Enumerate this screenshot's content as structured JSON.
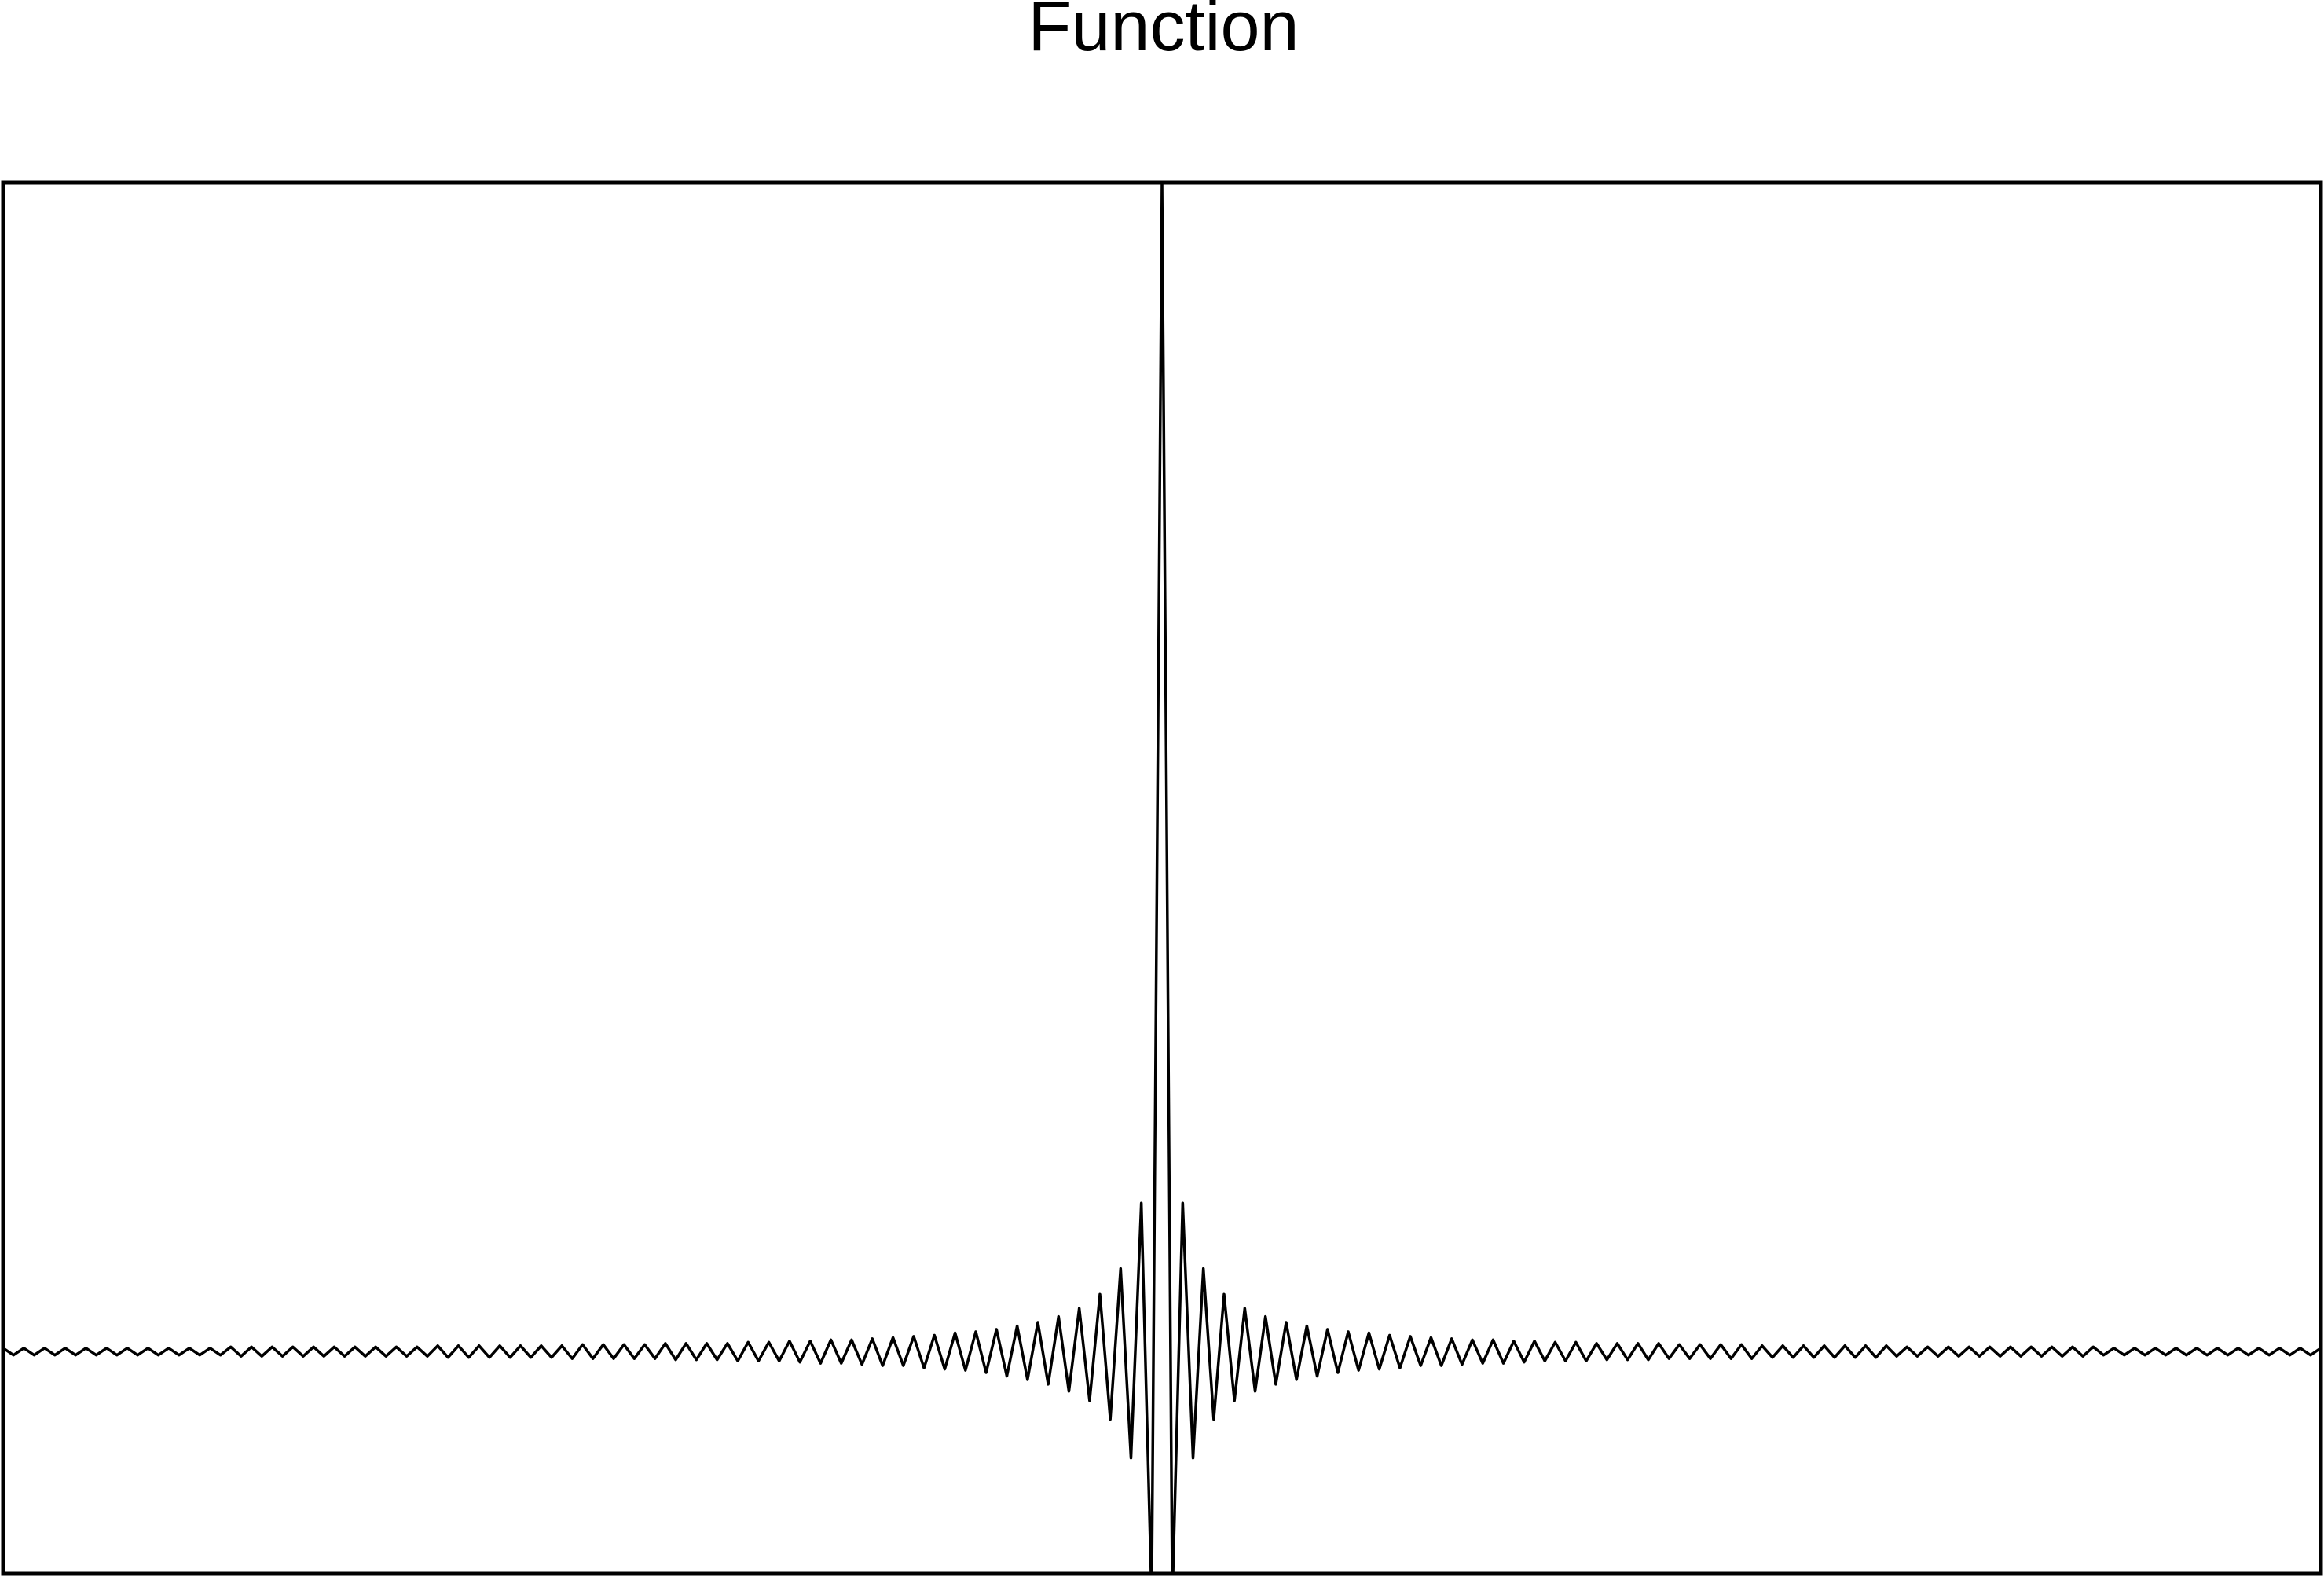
{
  "chart_data": {
    "type": "line",
    "title": "Function",
    "color": "#000000",
    "xlim": [
      -112,
      112
    ],
    "ylim": [
      -0.19,
      1
    ],
    "grid": false,
    "x": [
      -112,
      -111,
      -110,
      -109,
      -108,
      -107,
      -106,
      -105,
      -104,
      -103,
      -102,
      -101,
      -100,
      -99,
      -98,
      -97,
      -96,
      -95,
      -94,
      -93,
      -92,
      -91,
      -90,
      -89,
      -88,
      -87,
      -86,
      -85,
      -84,
      -83,
      -82,
      -81,
      -80,
      -79,
      -78,
      -77,
      -76,
      -75,
      -74,
      -73,
      -72,
      -71,
      -70,
      -69,
      -68,
      -67,
      -66,
      -65,
      -64,
      -63,
      -62,
      -61,
      -60,
      -59,
      -58,
      -57,
      -56,
      -55,
      -54,
      -53,
      -52,
      -51,
      -50,
      -49,
      -48,
      -47,
      -46,
      -45,
      -44,
      -43,
      -42,
      -41,
      -40,
      -39,
      -38,
      -37,
      -36,
      -35,
      -34,
      -33,
      -32,
      -31,
      -30,
      -29,
      -28,
      -27,
      -26,
      -25,
      -24,
      -23,
      -22,
      -21,
      -20,
      -19,
      -18,
      -17,
      -16,
      -15,
      -14,
      -13,
      -12,
      -11,
      -10,
      -9,
      -8,
      -7,
      -6,
      -5,
      -4,
      -3,
      -2,
      -1,
      0,
      1,
      2,
      3,
      4,
      5,
      6,
      7,
      8,
      9,
      10,
      11,
      12,
      13,
      14,
      15,
      16,
      17,
      18,
      19,
      20,
      21,
      22,
      23,
      24,
      25,
      26,
      27,
      28,
      29,
      30,
      31,
      32,
      33,
      34,
      35,
      36,
      37,
      38,
      39,
      40,
      41,
      42,
      43,
      44,
      45,
      46,
      47,
      48,
      49,
      50,
      51,
      52,
      53,
      54,
      55,
      56,
      57,
      58,
      59,
      60,
      61,
      62,
      63,
      64,
      65,
      66,
      67,
      68,
      69,
      70,
      71,
      72,
      73,
      74,
      75,
      76,
      77,
      78,
      79,
      80,
      81,
      82,
      83,
      84,
      85,
      86,
      87,
      88,
      89,
      90,
      91,
      92,
      93,
      94,
      95,
      96,
      97,
      98,
      99,
      100,
      101,
      102,
      103,
      104,
      105,
      106,
      107,
      108,
      109,
      110,
      111,
      112
    ],
    "values": [
      0.003,
      -0.003,
      0.003,
      -0.003,
      0.003,
      -0.003,
      0.003,
      -0.003,
      0.003,
      -0.003,
      0.003,
      -0.003,
      0.003,
      -0.003,
      0.003,
      -0.003,
      0.003,
      -0.003,
      0.003,
      -0.003,
      0.003,
      -0.003,
      0.004,
      -0.004,
      0.004,
      -0.004,
      0.004,
      -0.004,
      0.004,
      -0.004,
      0.004,
      -0.004,
      0.004,
      -0.004,
      0.004,
      -0.004,
      0.004,
      -0.004,
      0.004,
      -0.004,
      0.004,
      -0.004,
      0.005,
      -0.005,
      0.005,
      -0.005,
      0.005,
      -0.005,
      0.005,
      -0.005,
      0.005,
      -0.005,
      0.005,
      -0.005,
      0.005,
      -0.006,
      0.006,
      -0.006,
      0.006,
      -0.006,
      0.006,
      -0.006,
      0.006,
      -0.006,
      0.007,
      -0.007,
      0.007,
      -0.007,
      0.007,
      -0.007,
      0.007,
      -0.008,
      0.008,
      -0.008,
      0.008,
      -0.008,
      0.009,
      -0.009,
      0.009,
      -0.01,
      0.01,
      -0.01,
      0.01,
      -0.011,
      0.011,
      -0.012,
      0.012,
      -0.012,
      0.013,
      -0.014,
      0.014,
      -0.015,
      0.016,
      -0.016,
      0.017,
      -0.018,
      0.019,
      -0.021,
      0.022,
      -0.024,
      0.025,
      -0.028,
      0.03,
      -0.034,
      0.037,
      -0.042,
      0.049,
      -0.058,
      0.071,
      -0.091,
      0.127,
      -0.212,
      1,
      -0.212,
      0.127,
      -0.091,
      0.071,
      -0.058,
      0.049,
      -0.042,
      0.037,
      -0.034,
      0.03,
      -0.028,
      0.025,
      -0.024,
      0.022,
      -0.021,
      0.019,
      -0.018,
      0.017,
      -0.016,
      0.016,
      -0.015,
      0.014,
      -0.014,
      0.013,
      -0.012,
      0.012,
      -0.012,
      0.011,
      -0.011,
      0.01,
      -0.01,
      0.01,
      -0.01,
      0.009,
      -0.009,
      0.009,
      -0.008,
      0.008,
      -0.008,
      0.008,
      -0.008,
      0.007,
      -0.007,
      0.007,
      -0.007,
      0.007,
      -0.007,
      0.007,
      -0.006,
      0.006,
      -0.006,
      0.006,
      -0.006,
      0.006,
      -0.006,
      0.006,
      -0.006,
      0.005,
      -0.005,
      0.005,
      -0.005,
      0.005,
      -0.005,
      0.005,
      -0.005,
      0.005,
      -0.005,
      0.005,
      -0.005,
      0.005,
      -0.004,
      0.004,
      -0.004,
      0.004,
      -0.004,
      0.004,
      -0.004,
      0.004,
      -0.004,
      0.004,
      -0.004,
      0.004,
      -0.004,
      0.004,
      -0.004,
      0.004,
      -0.004,
      0.004,
      -0.004,
      0.004,
      -0.003,
      0.003,
      -0.003,
      0.003,
      -0.003,
      0.003,
      -0.003,
      0.003,
      -0.003,
      0.003,
      -0.003,
      0.003,
      -0.003,
      0.003,
      -0.003,
      0.003,
      -0.003,
      0.003,
      -0.003,
      0.003,
      -0.003,
      0.003
    ]
  }
}
